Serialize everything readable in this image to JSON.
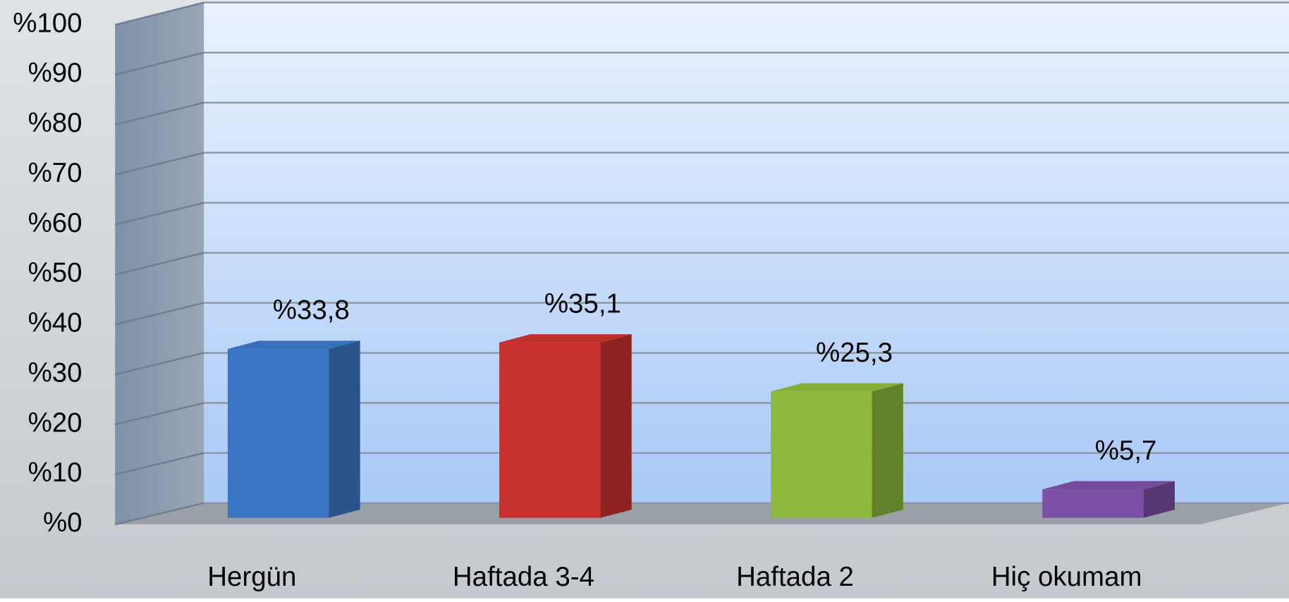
{
  "chart_data": {
    "type": "bar3d",
    "categories": [
      "Hergün",
      "Haftada 3-4",
      "Haftada 2",
      "Hiç okumam"
    ],
    "values": [
      33.8,
      35.1,
      25.3,
      5.7
    ],
    "value_labels": [
      "%33,8",
      "%35,1",
      "%25,3",
      "%5,7"
    ],
    "colors": [
      "#3a76c4",
      "#c8322e",
      "#8db83c",
      "#7b4fa3"
    ],
    "ylim": [
      0,
      100
    ],
    "yticks": [
      {
        "value": 0,
        "label": "%0"
      },
      {
        "value": 10,
        "label": "%10"
      },
      {
        "value": 20,
        "label": "%20"
      },
      {
        "value": 30,
        "label": "%30"
      },
      {
        "value": 40,
        "label": "%40"
      },
      {
        "value": 50,
        "label": "%50"
      },
      {
        "value": 60,
        "label": "%60"
      },
      {
        "value": 70,
        "label": "%70"
      },
      {
        "value": 80,
        "label": "%80"
      },
      {
        "value": 90,
        "label": "%90"
      },
      {
        "value": 100,
        "label": "%100"
      }
    ],
    "grid": true
  }
}
